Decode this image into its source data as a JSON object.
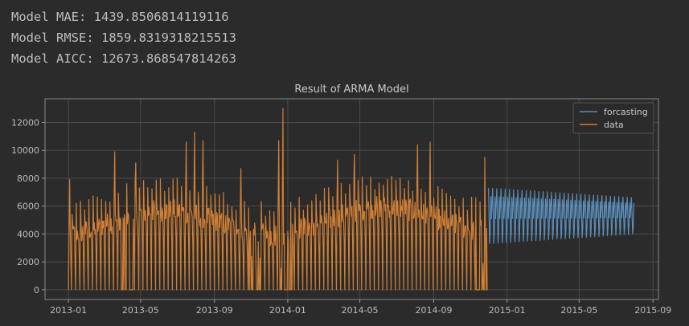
{
  "metrics": {
    "mae": "Model MAE: 1439.8506814119116",
    "rmse": "Model RMSE: 1859.8319318215513",
    "aicc": "Model AICC: 12673.868547814263"
  },
  "chart_data": {
    "type": "line",
    "title": "Result of ARMA Model",
    "xlabel": "",
    "ylabel": "",
    "x_ticks": [
      "2013-01",
      "2013-05",
      "2013-09",
      "2014-01",
      "2014-05",
      "2014-09",
      "2015-01",
      "2015-05",
      "2015-09"
    ],
    "y_ticks": [
      0,
      2000,
      4000,
      6000,
      8000,
      10000,
      12000
    ],
    "xlim": [
      "2012-11-23",
      "2015-09-10"
    ],
    "ylim": [
      -700,
      13700
    ],
    "grid": true,
    "legend_position": "top-right",
    "series": [
      {
        "name": "forcasting",
        "color": "#5b8db8",
        "x_start": "2014-12-01",
        "x_end": "2015-07-31",
        "pattern": "weekly oscillation",
        "high_start": 7300,
        "high_end": 6600,
        "low_start": 3300,
        "low_end": 4000
      },
      {
        "name": "data",
        "color": "#d07f35",
        "x_start": "2013-01-01",
        "x_end": "2014-11-30",
        "pattern": "daily values with weekly zeros",
        "peaks": [
          {
            "x": "2013-01-03",
            "y": 7900
          },
          {
            "x": "2013-03-19",
            "y": 9900
          },
          {
            "x": "2013-04-23",
            "y": 9100
          },
          {
            "x": "2013-07-16",
            "y": 10600
          },
          {
            "x": "2013-07-30",
            "y": 11300
          },
          {
            "x": "2013-08-13",
            "y": 10700
          },
          {
            "x": "2013-10-15",
            "y": 8700
          },
          {
            "x": "2013-12-17",
            "y": 10700
          },
          {
            "x": "2013-12-24",
            "y": 13000
          },
          {
            "x": "2014-03-25",
            "y": 9300
          },
          {
            "x": "2014-04-22",
            "y": 9700
          },
          {
            "x": "2014-08-05",
            "y": 10400
          },
          {
            "x": "2014-08-26",
            "y": 10600
          },
          {
            "x": "2014-11-25",
            "y": 9500
          }
        ]
      }
    ]
  }
}
